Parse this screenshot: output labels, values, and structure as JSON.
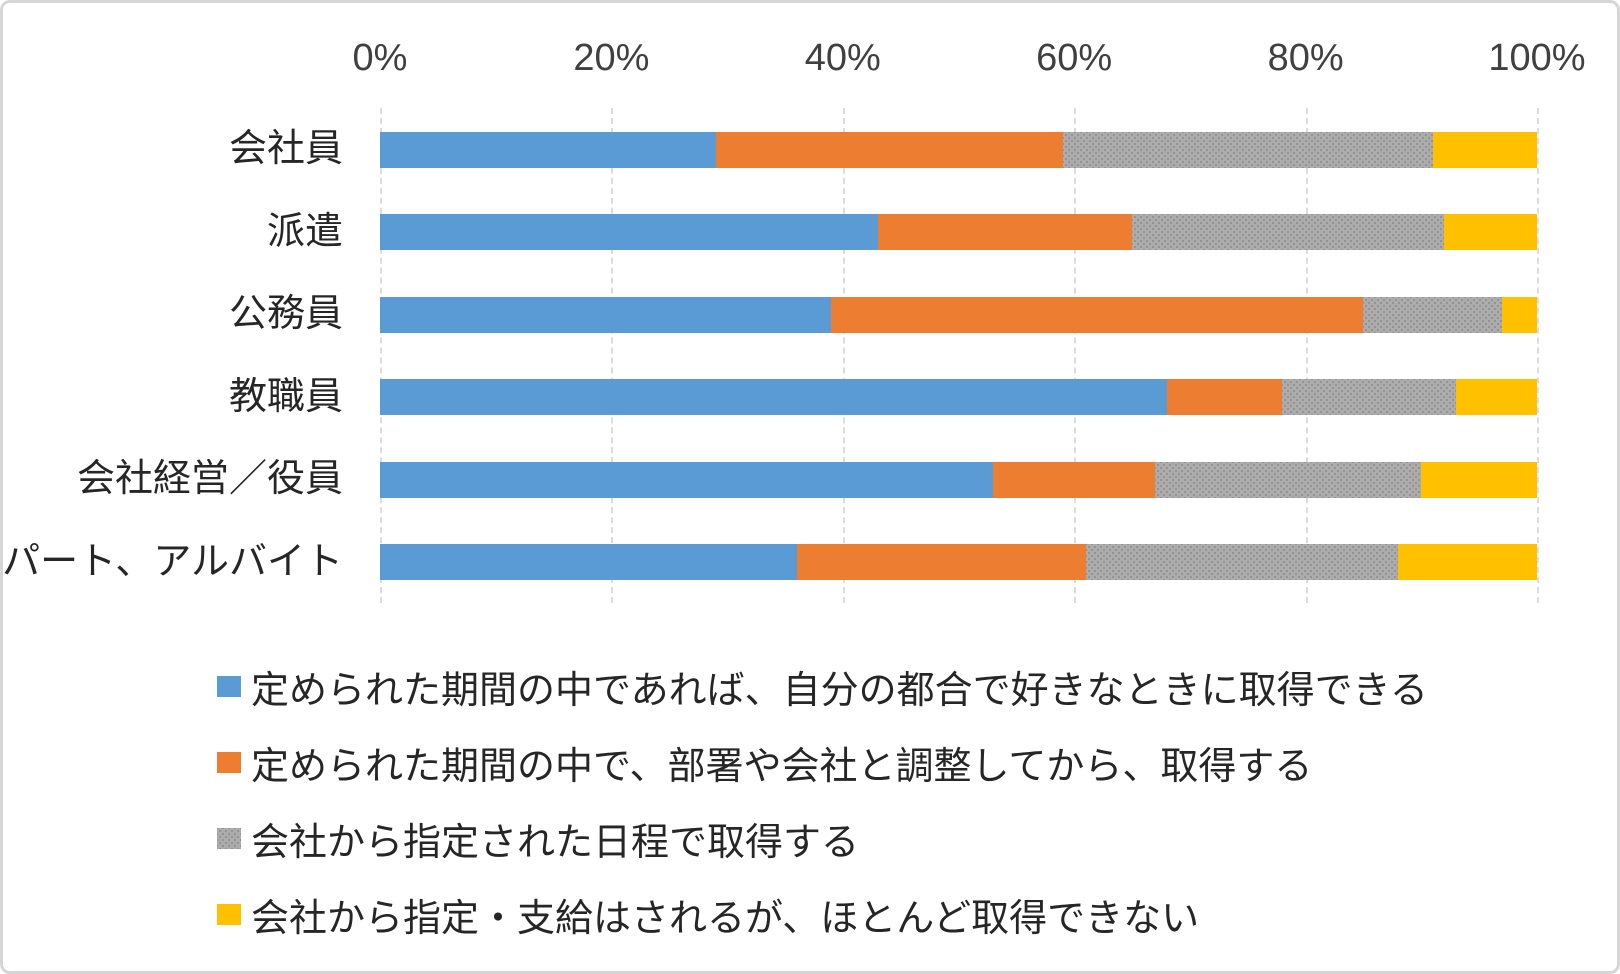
{
  "chart_data": {
    "type": "bar",
    "orientation": "horizontal",
    "stacked_percent": true,
    "grid": true,
    "legend_position": "bottom",
    "xlim": [
      0,
      100
    ],
    "x_ticks": [
      "0%",
      "20%",
      "40%",
      "60%",
      "80%",
      "100%"
    ],
    "categories": [
      "会社員",
      "派遣",
      "公務員",
      "教職員",
      "会社経営／役員",
      "パート、アルバイト"
    ],
    "series": [
      {
        "name": "定められた期間の中であれば、自分の都合で好きなときに取得できる",
        "color": "#5B9BD5",
        "pattern": "solid",
        "values": [
          29,
          43,
          39,
          68,
          53,
          36
        ]
      },
      {
        "name": "定められた期間の中で、部署や会社と調整してから、取得する",
        "color": "#ED7D31",
        "pattern": "solid",
        "values": [
          30,
          22,
          46,
          10,
          14,
          25
        ]
      },
      {
        "name": "会社から指定された日程で取得する",
        "color": "#A6A6A6",
        "pattern": "dotted",
        "values": [
          32,
          27,
          12,
          15,
          23,
          27
        ]
      },
      {
        "name": "会社から指定・支給はされるが、ほとんど取得できない",
        "color": "#FFC000",
        "pattern": "solid",
        "values": [
          9,
          8,
          3,
          7,
          10,
          12
        ]
      }
    ]
  },
  "colors": {
    "gridline": "#DCDCDC",
    "axis_text": "#404040",
    "label_text": "#262626",
    "frame_border": "#D6D6D6",
    "gray_pattern_dot": "#949494",
    "gray_pattern_bg": "#ACACAC"
  }
}
